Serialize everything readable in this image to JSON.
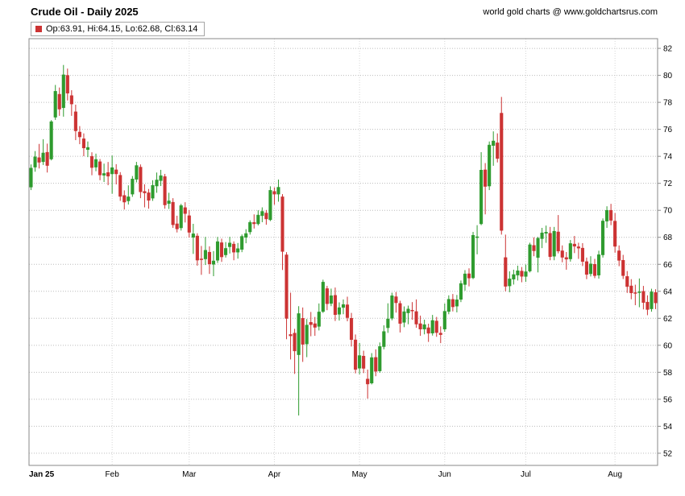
{
  "header": {
    "title": "Crude Oil - Daily 2025",
    "credit": "world gold charts @ www.goldchartsrus.com"
  },
  "legend": {
    "label": "Op:63.91, Hi:64.15, Lo:62.68, Cl:63.14"
  },
  "chart_data": {
    "type": "candlestick",
    "title": "Crude Oil - Daily 2025",
    "xlabel": "",
    "ylabel": "",
    "legend_position": "top-left",
    "grid": true,
    "y_ticks": [
      82,
      80,
      78,
      76,
      74,
      72,
      70,
      68,
      66,
      64,
      62,
      60,
      58,
      56,
      54,
      52
    ],
    "ylim": [
      51.1,
      82.72
    ],
    "colors": {
      "up": "#2e9b2e",
      "down": "#cc3333",
      "grid": "#bcbcbc",
      "month_line": "#d6d6d6",
      "border": "#8a8a8a",
      "text": "#000000"
    },
    "x_labels": [
      {
        "label": "Jan 25",
        "index": 0
      },
      {
        "label": "Feb",
        "index": 20
      },
      {
        "label": "Mar",
        "index": 39
      },
      {
        "label": "Apr",
        "index": 60
      },
      {
        "label": "May",
        "index": 81
      },
      {
        "label": "Jun",
        "index": 102
      },
      {
        "label": "Jul",
        "index": 122
      },
      {
        "label": "Aug",
        "index": 144
      }
    ],
    "last_candle": {
      "open": 63.91,
      "high": 64.15,
      "low": 62.68,
      "close": 63.14
    },
    "columns": [
      "date",
      "open",
      "high",
      "low",
      "close"
    ],
    "ohlc": [
      [
        "Jan 2",
        71.72,
        73.4,
        71.5,
        73.13
      ],
      [
        "Jan 3",
        73.2,
        74.39,
        72.86,
        73.96
      ],
      [
        "Jan 6",
        73.9,
        74.92,
        73.1,
        73.56
      ],
      [
        "Jan 7",
        73.6,
        75.27,
        73.36,
        74.25
      ],
      [
        "Jan 8",
        74.3,
        74.94,
        72.8,
        73.32
      ],
      [
        "Jan 10",
        73.8,
        76.68,
        73.7,
        76.57
      ],
      [
        "Jan 13",
        76.9,
        79.29,
        76.7,
        78.82
      ],
      [
        "Jan 14",
        78.6,
        79.1,
        77.0,
        77.5
      ],
      [
        "Jan 15",
        77.6,
        80.77,
        76.94,
        80.04
      ],
      [
        "Jan 16",
        80.0,
        80.5,
        78.14,
        78.68
      ],
      [
        "Jan 17",
        78.5,
        78.9,
        77.0,
        77.88
      ],
      [
        "Jan 21",
        77.3,
        77.83,
        75.2,
        75.89
      ],
      [
        "Jan 22",
        75.8,
        76.24,
        74.9,
        75.44
      ],
      [
        "Jan 23",
        75.3,
        75.7,
        74.01,
        74.62
      ],
      [
        "Jan 24",
        74.5,
        75.1,
        73.94,
        74.66
      ],
      [
        "Jan 27",
        74.0,
        74.3,
        72.6,
        73.17
      ],
      [
        "Jan 28",
        73.2,
        74.2,
        72.9,
        73.77
      ],
      [
        "Jan 29",
        73.6,
        73.8,
        72.23,
        72.62
      ],
      [
        "Jan 30",
        72.6,
        73.46,
        72.1,
        72.73
      ],
      [
        "Jan 31",
        72.8,
        73.58,
        71.86,
        72.53
      ],
      [
        "Feb 3",
        72.7,
        74.06,
        71.23,
        73.16
      ],
      [
        "Feb 4",
        73.0,
        73.42,
        71.92,
        72.7
      ],
      [
        "Feb 5",
        72.6,
        72.83,
        70.7,
        71.03
      ],
      [
        "Feb 6",
        71.1,
        71.48,
        70.06,
        70.61
      ],
      [
        "Feb 7",
        70.7,
        71.85,
        70.43,
        71.0
      ],
      [
        "Feb 10",
        71.2,
        72.54,
        71.0,
        72.32
      ],
      [
        "Feb 11",
        72.3,
        73.59,
        72.07,
        73.32
      ],
      [
        "Feb 12",
        73.2,
        73.4,
        70.9,
        71.37
      ],
      [
        "Feb 13",
        71.4,
        71.93,
        70.22,
        71.29
      ],
      [
        "Feb 14",
        71.3,
        71.58,
        70.12,
        70.74
      ],
      [
        "Feb 18",
        70.9,
        72.23,
        70.7,
        71.85
      ],
      [
        "Feb 19",
        71.8,
        72.8,
        71.3,
        72.25
      ],
      [
        "Feb 20",
        72.2,
        73.0,
        71.8,
        72.57
      ],
      [
        "Feb 21",
        72.5,
        72.7,
        70.12,
        70.4
      ],
      [
        "Feb 24",
        70.5,
        71.3,
        70.1,
        70.7
      ],
      [
        "Feb 25",
        70.6,
        70.9,
        68.7,
        68.93
      ],
      [
        "Feb 26",
        69.0,
        69.6,
        68.36,
        68.62
      ],
      [
        "Feb 27",
        68.7,
        70.48,
        68.5,
        70.35
      ],
      [
        "Feb 28",
        70.2,
        70.6,
        69.1,
        69.76
      ],
      [
        "Mar 3",
        69.6,
        70.03,
        67.98,
        68.37
      ],
      [
        "Mar 4",
        68.0,
        69.0,
        66.77,
        68.26
      ],
      [
        "Mar 5",
        68.1,
        68.3,
        65.9,
        66.31
      ],
      [
        "Mar 6",
        66.4,
        67.36,
        65.22,
        66.36
      ],
      [
        "Mar 7",
        66.4,
        68.03,
        65.95,
        67.04
      ],
      [
        "Mar 10",
        66.9,
        67.33,
        65.29,
        66.03
      ],
      [
        "Mar 11",
        66.0,
        66.98,
        65.12,
        66.25
      ],
      [
        "Mar 12",
        66.3,
        68.03,
        66.1,
        67.68
      ],
      [
        "Mar 13",
        67.6,
        67.9,
        66.18,
        66.55
      ],
      [
        "Mar 14",
        66.7,
        67.65,
        66.5,
        67.18
      ],
      [
        "Mar 17",
        67.3,
        68.04,
        66.8,
        67.58
      ],
      [
        "Mar 18",
        67.5,
        67.7,
        66.3,
        66.9
      ],
      [
        "Mar 19",
        66.9,
        67.58,
        66.42,
        67.16
      ],
      [
        "Mar 20",
        67.1,
        68.21,
        66.9,
        68.07
      ],
      [
        "Mar 21",
        68.0,
        68.6,
        67.56,
        68.28
      ],
      [
        "Mar 24",
        68.4,
        69.26,
        68.2,
        69.11
      ],
      [
        "Mar 25",
        69.1,
        69.7,
        68.65,
        69.0
      ],
      [
        "Mar 26",
        69.0,
        70.0,
        68.88,
        69.65
      ],
      [
        "Mar 27",
        69.6,
        70.22,
        69.12,
        69.92
      ],
      [
        "Mar 28",
        69.8,
        70.02,
        68.93,
        69.36
      ],
      [
        "Mar 31",
        69.3,
        71.78,
        69.2,
        71.48
      ],
      [
        "Apr 1",
        71.4,
        71.7,
        70.41,
        71.2
      ],
      [
        "Apr 2",
        71.2,
        72.28,
        70.64,
        71.71
      ],
      [
        "Apr 3",
        71.0,
        71.2,
        65.58,
        66.95
      ],
      [
        "Apr 4",
        66.7,
        66.9,
        60.45,
        61.99
      ],
      [
        "Apr 7",
        60.8,
        63.9,
        58.95,
        60.7
      ],
      [
        "Apr 8",
        60.9,
        61.22,
        57.88,
        59.58
      ],
      [
        "Apr 9",
        59.3,
        62.9,
        54.8,
        62.35
      ],
      [
        "Apr 10",
        62.0,
        62.8,
        58.77,
        60.07
      ],
      [
        "Apr 11",
        60.1,
        61.95,
        59.12,
        61.5
      ],
      [
        "Apr 14",
        61.7,
        62.47,
        60.67,
        61.53
      ],
      [
        "Apr 15",
        61.6,
        62.1,
        60.7,
        61.33
      ],
      [
        "Apr 16",
        61.4,
        63.1,
        61.1,
        62.47
      ],
      [
        "Apr 17",
        62.5,
        64.86,
        62.4,
        64.68
      ],
      [
        "Apr 21",
        64.2,
        64.4,
        62.6,
        63.08
      ],
      [
        "Apr 22",
        63.1,
        64.2,
        62.9,
        63.67
      ],
      [
        "Apr 23",
        63.7,
        64.28,
        61.8,
        62.27
      ],
      [
        "Apr 24",
        62.3,
        63.18,
        61.83,
        62.79
      ],
      [
        "Apr 25",
        62.8,
        63.4,
        62.3,
        63.02
      ],
      [
        "Apr 28",
        63.0,
        63.6,
        61.78,
        62.05
      ],
      [
        "Apr 29",
        62.0,
        62.4,
        59.91,
        60.42
      ],
      [
        "Apr 30",
        60.4,
        60.8,
        57.92,
        58.21
      ],
      [
        "May 1",
        58.3,
        60.18,
        57.85,
        59.24
      ],
      [
        "May 2",
        59.2,
        59.6,
        57.94,
        58.29
      ],
      [
        "May 5",
        57.5,
        58.2,
        56.05,
        57.13
      ],
      [
        "May 6",
        57.2,
        59.42,
        57.1,
        59.09
      ],
      [
        "May 7",
        59.1,
        59.7,
        57.71,
        58.07
      ],
      [
        "May 8",
        58.1,
        60.21,
        57.96,
        59.91
      ],
      [
        "May 9",
        59.9,
        61.48,
        59.7,
        61.02
      ],
      [
        "May 12",
        61.3,
        63.11,
        60.92,
        61.95
      ],
      [
        "May 13",
        62.0,
        63.9,
        61.85,
        63.67
      ],
      [
        "May 14",
        63.6,
        63.95,
        62.42,
        63.15
      ],
      [
        "May 15",
        63.1,
        63.3,
        60.95,
        61.62
      ],
      [
        "May 16",
        61.7,
        62.88,
        61.34,
        62.49
      ],
      [
        "May 19",
        62.4,
        62.94,
        61.56,
        62.69
      ],
      [
        "May 20",
        62.6,
        63.2,
        61.89,
        62.56
      ],
      [
        "May 21",
        62.5,
        63.4,
        61.3,
        61.57
      ],
      [
        "May 22",
        61.6,
        62.2,
        60.7,
        61.2
      ],
      [
        "May 23",
        61.2,
        61.9,
        60.81,
        61.53
      ],
      [
        "May 27",
        61.3,
        61.6,
        60.25,
        60.89
      ],
      [
        "May 28",
        60.9,
        62.25,
        60.72,
        61.84
      ],
      [
        "May 29",
        61.8,
        62.1,
        60.63,
        60.94
      ],
      [
        "May 30",
        60.9,
        61.4,
        60.16,
        60.79
      ],
      [
        "Jun 2",
        61.2,
        63.1,
        61.0,
        62.52
      ],
      [
        "Jun 3",
        62.5,
        63.7,
        62.3,
        63.41
      ],
      [
        "Jun 4",
        63.4,
        63.8,
        62.51,
        62.85
      ],
      [
        "Jun 5",
        62.9,
        63.73,
        62.44,
        63.37
      ],
      [
        "Jun 6",
        63.4,
        64.8,
        63.2,
        64.58
      ],
      [
        "Jun 9",
        64.5,
        65.57,
        64.05,
        65.29
      ],
      [
        "Jun 10",
        65.3,
        65.7,
        64.37,
        64.98
      ],
      [
        "Jun 11",
        65.0,
        68.4,
        64.9,
        68.15
      ],
      [
        "Jun 12",
        68.0,
        68.9,
        66.74,
        68.04
      ],
      [
        "Jun 13",
        69.0,
        74.31,
        68.9,
        72.98
      ],
      [
        "Jun 16",
        73.0,
        73.5,
        69.7,
        71.77
      ],
      [
        "Jun 17",
        71.8,
        75.1,
        71.5,
        74.84
      ],
      [
        "Jun 18",
        74.8,
        75.85,
        73.3,
        75.14
      ],
      [
        "Jun 20",
        75.0,
        75.7,
        73.55,
        73.84
      ],
      [
        "Jun 23",
        77.2,
        78.4,
        68.2,
        68.51
      ],
      [
        "Jun 24",
        66.5,
        68.2,
        64.0,
        64.37
      ],
      [
        "Jun 25",
        64.4,
        65.48,
        63.93,
        64.92
      ],
      [
        "Jun 26",
        64.9,
        65.6,
        64.5,
        65.24
      ],
      [
        "Jun 27",
        65.2,
        65.9,
        64.8,
        65.52
      ],
      [
        "Jun 30",
        65.5,
        65.8,
        64.67,
        65.11
      ],
      [
        "Jul 1",
        65.1,
        65.98,
        64.7,
        65.45
      ],
      [
        "Jul 2",
        65.5,
        67.6,
        65.4,
        67.45
      ],
      [
        "Jul 3",
        67.4,
        68.0,
        66.6,
        67.0
      ],
      [
        "Jul 7",
        66.5,
        68.03,
        65.4,
        67.93
      ],
      [
        "Jul 8",
        67.9,
        68.7,
        67.2,
        68.33
      ],
      [
        "Jul 9",
        68.3,
        68.87,
        67.59,
        68.38
      ],
      [
        "Jul 10",
        68.3,
        68.77,
        66.3,
        66.57
      ],
      [
        "Jul 11",
        66.6,
        68.77,
        66.3,
        68.45
      ],
      [
        "Jul 14",
        68.4,
        69.65,
        66.81,
        66.98
      ],
      [
        "Jul 15",
        67.0,
        67.4,
        66.15,
        66.52
      ],
      [
        "Jul 16",
        66.5,
        66.91,
        65.6,
        66.38
      ],
      [
        "Jul 17",
        66.4,
        67.8,
        66.2,
        67.54
      ],
      [
        "Jul 18",
        67.5,
        68.1,
        66.83,
        67.34
      ],
      [
        "Jul 21",
        67.3,
        67.6,
        66.4,
        67.2
      ],
      [
        "Jul 22",
        67.2,
        67.57,
        65.87,
        66.21
      ],
      [
        "Jul 23",
        66.2,
        66.5,
        64.9,
        65.25
      ],
      [
        "Jul 24",
        65.3,
        66.6,
        65.1,
        66.03
      ],
      [
        "Jul 25",
        66.0,
        66.4,
        64.97,
        65.16
      ],
      [
        "Jul 28",
        65.2,
        67.01,
        64.94,
        66.71
      ],
      [
        "Jul 29",
        66.7,
        69.4,
        66.5,
        69.21
      ],
      [
        "Jul 30",
        69.2,
        70.3,
        68.7,
        70.0
      ],
      [
        "Jul 31",
        70.0,
        70.48,
        68.9,
        69.26
      ],
      [
        "Aug 1",
        69.2,
        69.8,
        66.86,
        67.33
      ],
      [
        "Aug 4",
        67.0,
        67.4,
        65.86,
        66.29
      ],
      [
        "Aug 5",
        66.3,
        66.7,
        64.91,
        65.16
      ],
      [
        "Aug 6",
        65.1,
        65.5,
        63.88,
        64.35
      ],
      [
        "Aug 7",
        64.4,
        64.9,
        63.41,
        63.88
      ],
      [
        "Aug 8",
        63.9,
        64.49,
        62.97,
        63.88
      ],
      [
        "Aug 11",
        63.9,
        64.95,
        62.82,
        63.96
      ],
      [
        "Aug 12",
        64.0,
        64.4,
        62.66,
        63.17
      ],
      [
        "Aug 13",
        63.2,
        63.7,
        62.23,
        62.65
      ],
      [
        "Aug 14",
        62.7,
        64.19,
        62.49,
        63.96
      ],
      [
        "Aug 15",
        63.91,
        64.15,
        62.68,
        63.14
      ]
    ]
  }
}
